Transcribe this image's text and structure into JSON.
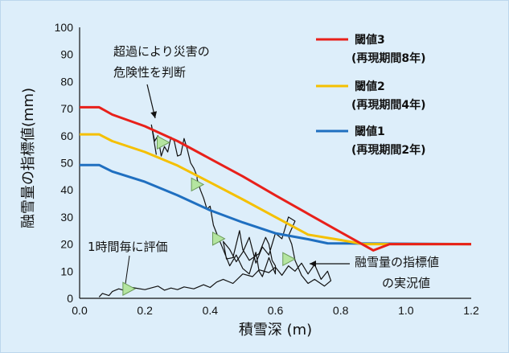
{
  "chart_data": {
    "type": "line",
    "xlabel": "積雪深 (m)",
    "ylabel": "融雪量の指標値(mm)",
    "xlim": [
      0,
      1.2
    ],
    "ylim": [
      0,
      100
    ],
    "x_ticks": [
      "0.0",
      "0.2",
      "0.4",
      "0.6",
      "0.8",
      "1.0",
      "1.2"
    ],
    "y_ticks": [
      "0",
      "10",
      "20",
      "30",
      "40",
      "50",
      "60",
      "70",
      "80",
      "90",
      "100"
    ],
    "grid": false,
    "legend_position": "top-right",
    "series": [
      {
        "name": "閾値3",
        "name_sub": "(再現期間8年)",
        "color": "#e8201a",
        "x": [
          0.0,
          0.06,
          0.1,
          0.2,
          0.3,
          0.4,
          0.5,
          0.6,
          0.7,
          0.8,
          0.9,
          0.95,
          1.0,
          1.2
        ],
        "y": [
          70.5,
          70.5,
          67.8,
          63.5,
          58.0,
          51.5,
          45.0,
          38.0,
          31.2,
          24.4,
          17.7,
          20.0,
          20.0,
          20.0
        ]
      },
      {
        "name": "閾値2",
        "name_sub": "(再現期間4年)",
        "color": "#f5c000",
        "x": [
          0.0,
          0.06,
          0.1,
          0.2,
          0.3,
          0.4,
          0.5,
          0.6,
          0.7,
          0.8,
          0.87,
          1.2
        ],
        "y": [
          60.5,
          60.5,
          58.0,
          54.0,
          49.0,
          42.8,
          36.5,
          30.0,
          23.5,
          21.5,
          20.0,
          20.0
        ]
      },
      {
        "name": "閾値1",
        "name_sub": "(再現期間2年)",
        "color": "#1f6fc0",
        "x": [
          0.0,
          0.06,
          0.1,
          0.2,
          0.3,
          0.4,
          0.5,
          0.6,
          0.7,
          0.76,
          1.2
        ],
        "y": [
          49.2,
          49.2,
          46.8,
          43.0,
          38.0,
          32.5,
          28.0,
          24.0,
          21.8,
          20.3,
          20.0
        ]
      },
      {
        "name": "融雪量の指標値の実況値",
        "color": "#111111",
        "x": [
          0.06,
          0.07,
          0.09,
          0.1,
          0.12,
          0.14,
          0.16,
          0.2,
          0.24,
          0.26,
          0.28,
          0.3,
          0.32,
          0.35,
          0.38,
          0.4,
          0.42,
          0.44,
          0.47,
          0.5,
          0.53,
          0.55,
          0.58,
          0.6,
          0.62,
          0.64,
          0.66,
          0.68,
          0.7,
          0.72,
          0.74,
          0.76,
          0.77,
          0.75,
          0.72,
          0.7,
          0.68,
          0.66,
          0.65,
          0.64,
          0.66,
          0.64,
          0.62,
          0.6,
          0.58,
          0.56,
          0.54,
          0.52,
          0.5,
          0.48,
          0.46,
          0.44,
          0.45,
          0.47,
          0.49,
          0.5,
          0.52,
          0.55,
          0.57,
          0.58,
          0.59,
          0.6,
          0.6,
          0.58,
          0.56,
          0.55,
          0.54,
          0.52,
          0.5,
          0.48,
          0.46,
          0.44,
          0.43,
          0.42,
          0.41,
          0.4,
          0.39,
          0.38,
          0.37,
          0.36,
          0.36,
          0.35,
          0.34,
          0.33,
          0.32,
          0.31,
          0.3,
          0.29,
          0.28,
          0.27,
          0.26,
          0.25,
          0.24,
          0.23,
          0.22,
          0.235
        ],
        "y": [
          0.5,
          1.8,
          1.0,
          2.5,
          3.5,
          2.8,
          4.0,
          3.2,
          4.5,
          3.0,
          3.8,
          3.2,
          4.2,
          3.5,
          5.0,
          4.0,
          6.0,
          7.0,
          5.5,
          9.0,
          8.0,
          10.5,
          9.5,
          11.5,
          8.5,
          12.0,
          10.0,
          13.0,
          9.0,
          12.5,
          7.0,
          10.0,
          6.5,
          4.5,
          7.0,
          5.5,
          8.5,
          14.0,
          20.0,
          23.0,
          28.5,
          30.0,
          22.0,
          24.0,
          16.0,
          19.0,
          13.0,
          22.5,
          17.0,
          13.5,
          18.0,
          21.0,
          14.5,
          15.0,
          25.0,
          18.0,
          14.0,
          16.5,
          22.5,
          20.0,
          14.0,
          12.0,
          9.0,
          15.0,
          8.0,
          10.0,
          17.0,
          9.0,
          11.0,
          16.0,
          12.0,
          18.0,
          21.0,
          24.0,
          27.0,
          34.0,
          33.0,
          37.0,
          40.0,
          44.0,
          45.0,
          48.0,
          50.0,
          55.0,
          59.0,
          53.0,
          52.5,
          58.0,
          59.5,
          54.0,
          56.0,
          52.5,
          60.0,
          58.0,
          64.0,
          53.0
        ]
      }
    ],
    "annotations": [
      {
        "lines": [
          "超過により災害の",
          "危険性を判断"
        ]
      },
      {
        "lines": [
          "1時間毎に評価"
        ]
      },
      {
        "lines": [
          "融雪量の指標値",
          "の実況値"
        ]
      }
    ],
    "markers": [
      {
        "x": 0.255,
        "y": 57.5
      },
      {
        "x": 0.36,
        "y": 42.0
      },
      {
        "x": 0.425,
        "y": 22.0
      },
      {
        "x": 0.64,
        "y": 14.5
      },
      {
        "x": 0.15,
        "y": 3.5
      }
    ],
    "marker_color": "#b4e5a0"
  }
}
